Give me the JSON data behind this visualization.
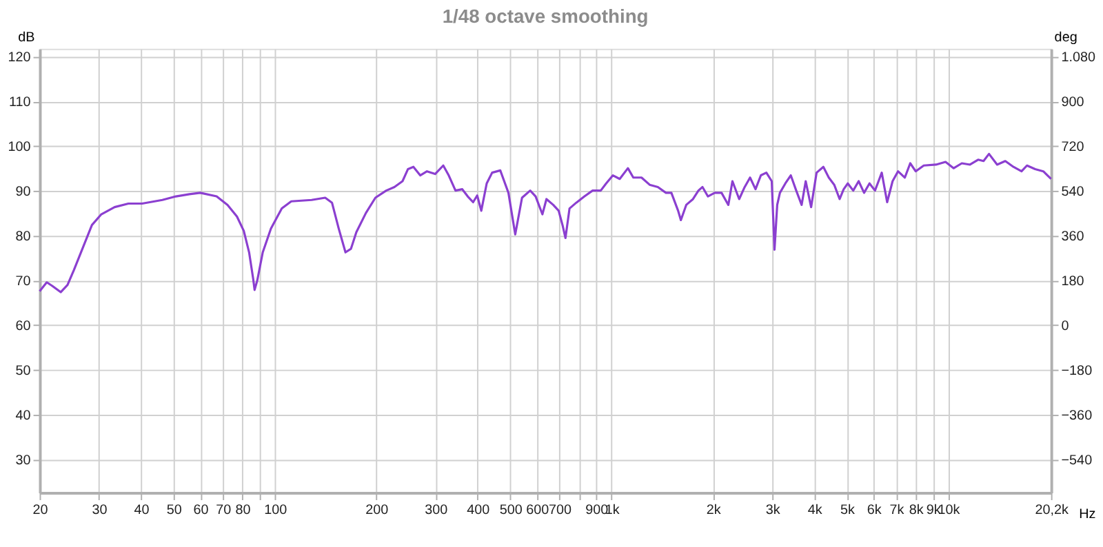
{
  "chart_data": {
    "type": "line",
    "title": "1/48 octave smoothing",
    "xlabel": "Hz",
    "ylabel": "dB",
    "y2label": "deg",
    "log": "x",
    "grid": true,
    "marker": "none",
    "line_style": "solid",
    "xlim": [
      20,
      20200
    ],
    "ylim": [
      22.6,
      121.8
    ],
    "y2lim": [
      -673,
      1112
    ],
    "xticks": [
      20,
      30,
      40,
      50,
      60,
      70,
      80,
      {
        "value": 90,
        "label": null
      },
      100,
      200,
      300,
      400,
      500,
      600,
      700,
      {
        "value": 800,
        "label": null
      },
      900,
      {
        "value": 1000,
        "label": "1k"
      },
      {
        "value": 2000,
        "label": "2k"
      },
      {
        "value": 3000,
        "label": "3k"
      },
      {
        "value": 4000,
        "label": "4k"
      },
      {
        "value": 5000,
        "label": "5k"
      },
      {
        "value": 6000,
        "label": "6k"
      },
      {
        "value": 7000,
        "label": "7k"
      },
      {
        "value": 8000,
        "label": "8k"
      },
      {
        "value": 9000,
        "label": "9k"
      },
      {
        "value": 10000,
        "label": "10k"
      },
      {
        "value": 20200,
        "label": "20,2k"
      }
    ],
    "yticks": [
      30,
      40,
      50,
      60,
      70,
      80,
      90,
      100,
      110,
      120
    ],
    "y2ticks": [
      -540,
      -360,
      -180,
      0,
      180,
      360,
      540,
      720,
      900,
      {
        "value": 1080,
        "label": "1.080"
      }
    ],
    "series": [
      {
        "color": "#8b3fd0",
        "x": [
          20,
          21.0,
          21.8,
          23.1,
          24.2,
          25.3,
          27.0,
          28.6,
          30.5,
          33.4,
          36.7,
          40.3,
          46.3,
          50.8,
          55.7,
          60.0,
          67.1,
          72.3,
          77.1,
          80.8,
          83.8,
          86.2,
          87.0,
          88.6,
          92.0,
          97.3,
          104.8,
          111.8,
          128.5,
          141,
          147.7,
          154.7,
          162,
          168.2,
          174.5,
          186.3,
          198.8,
          214.1,
          226.4,
          239.3,
          248.4,
          257.8,
          270.1,
          282.9,
          299.1,
          316.2,
          328.2,
          343.8,
          360.1,
          373.7,
          387.8,
          398.8,
          410.1,
          425.6,
          441.7,
          467,
          493.8,
          517.3,
          541.9,
          573,
          594.7,
          622.9,
          640.5,
          670.8,
          696.2,
          715.8,
          729.3,
          749.9,
          785.6,
          830.6,
          878.1,
          928.4,
          963.5,
          1009,
          1057,
          1118,
          1160,
          1227,
          1297,
          1372,
          1450,
          1505,
          1576,
          1606,
          1666,
          1745,
          1811,
          1862,
          1932,
          2025,
          2121,
          2222,
          2285,
          2393,
          2485,
          2578,
          2676,
          2776,
          2882,
          2990,
          3047,
          3104,
          3162,
          3282,
          3406,
          3535,
          3668,
          3772,
          3914,
          4063,
          4256,
          4417,
          4584,
          4757,
          4891,
          5030,
          5220,
          5418,
          5623,
          5835,
          6058,
          6345,
          6584,
          6833,
          7092,
          7430,
          7710,
          8002,
          8457,
          9198,
          9815,
          10378,
          10972,
          11602,
          12265,
          12727,
          13213,
          13970,
          14770,
          15614,
          16507,
          17131,
          18119,
          19156,
          20200
        ],
        "values": [
          67.6,
          69.6,
          68.8,
          67.4,
          69.0,
          72.4,
          77.7,
          82.4,
          84.8,
          86.4,
          87.2,
          87.2,
          88.0,
          88.8,
          89.3,
          89.6,
          88.8,
          86.9,
          84.3,
          81.1,
          76.3,
          70.3,
          67.9,
          70.0,
          76.3,
          81.6,
          86.1,
          87.7,
          88.0,
          88.5,
          87.4,
          81.6,
          76.3,
          77.1,
          80.8,
          85.1,
          88.5,
          90.1,
          90.9,
          92.2,
          94.9,
          95.4,
          93.5,
          94.4,
          93.8,
          95.7,
          93.5,
          90.1,
          90.4,
          88.8,
          87.5,
          89.0,
          85.6,
          91.7,
          94.1,
          94.6,
          89.6,
          80.3,
          88.5,
          90.1,
          88.8,
          84.8,
          88.2,
          86.9,
          85.6,
          82.2,
          79.5,
          86.1,
          87.4,
          88.8,
          90.1,
          90.1,
          91.7,
          93.5,
          92.7,
          95.1,
          93.0,
          93.0,
          91.4,
          90.9,
          89.6,
          89.6,
          85.6,
          83.5,
          86.9,
          88.2,
          90.1,
          90.9,
          88.8,
          89.6,
          89.6,
          86.9,
          92.2,
          88.2,
          90.9,
          93.0,
          90.4,
          93.5,
          94.1,
          92.2,
          76.9,
          86.9,
          89.6,
          91.7,
          93.5,
          90.1,
          86.9,
          92.2,
          86.4,
          94.1,
          95.4,
          93.0,
          91.4,
          88.2,
          90.4,
          91.7,
          90.1,
          92.2,
          89.6,
          91.7,
          90.1,
          94.1,
          87.5,
          92.2,
          94.4,
          93.0,
          96.2,
          94.4,
          95.7,
          95.9,
          96.5,
          95.1,
          96.2,
          95.9,
          97.0,
          96.7,
          98.3,
          95.9,
          96.7,
          95.4,
          94.4,
          95.7,
          94.9,
          94.4,
          92.7
        ]
      }
    ]
  }
}
